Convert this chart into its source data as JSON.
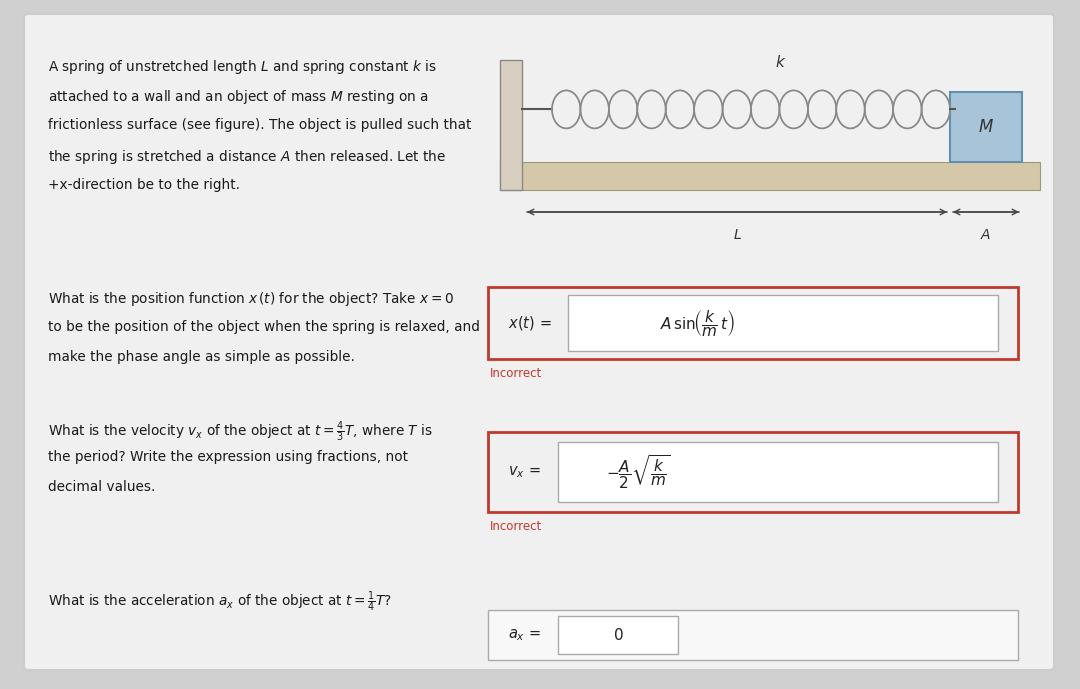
{
  "bg_color": "#d0d0d0",
  "card_color": "#f0f0f0",
  "card_border": "#bbbbbb",
  "problem_text_lines": [
    "A spring of unstretched length $L$ and spring constant $k$ is",
    "attached to a wall and an object of mass $M$ resting on a",
    "frictionless surface (see figure). The object is pulled such that",
    "the spring is stretched a distance $A$ then released. Let the",
    "+x-direction be to the right."
  ],
  "q1_text_lines": [
    "What is the position function $x\\,(t)$ for the object? Take $x = 0$",
    "to be the position of the object when the spring is relaxed, and",
    "make the phase angle as simple as possible."
  ],
  "q1_label": "Incorrect",
  "q2_text_lines": [
    "What is the velocity $v_x$ of the object at $t = \\frac{4}{3}T$, where $T$ is",
    "the period? Write the expression using fractions, not",
    "decimal values."
  ],
  "q2_label": "Incorrect",
  "q3_text": "What is the acceleration $a_x$ of the object at $t = \\frac{1}{4}T$?",
  "incorrect_color": "#c0392b",
  "red_border": "#c0392b",
  "gray_border": "#aaaaaa",
  "wall_color": "#d4c8b8",
  "wall_top_color": "#c8bca8",
  "surface_color": "#d4c8b0",
  "mass_color": "#a8c4d8",
  "mass_border": "#6090b0"
}
